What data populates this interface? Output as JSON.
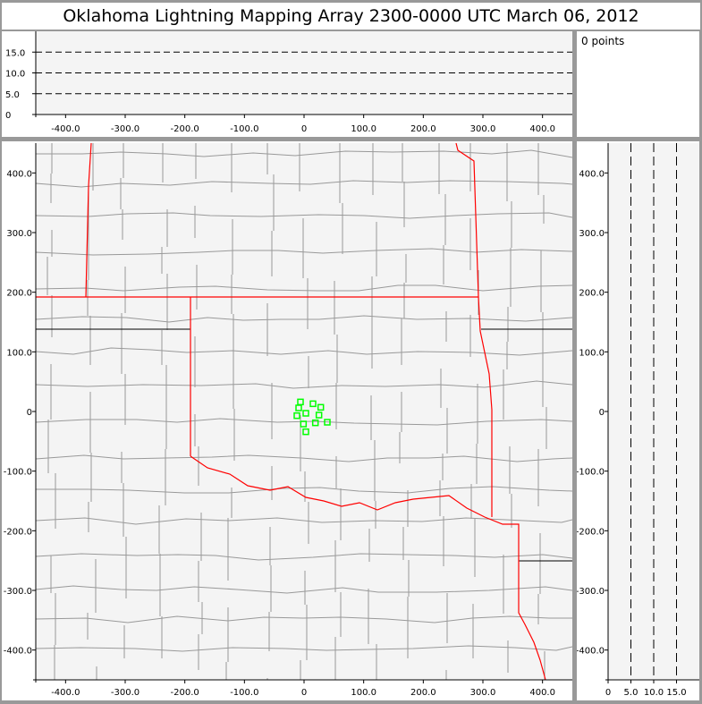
{
  "title": "Oklahoma Lightning Mapping Array   2300-0000 UTC  March 06, 2012",
  "info": {
    "points_label": "0 points"
  },
  "colors": {
    "plot_bg": "#f4f4f4",
    "state_border": "#ff0000",
    "county_border": "#999999",
    "source_marker": "#00ff00"
  },
  "height_panel": {
    "x_ticks": [
      "-400.0",
      "-300.0",
      "-200.0",
      "-100.0",
      "0",
      "100.0",
      "200.0",
      "300.0",
      "400.0"
    ],
    "y_ticks": [
      "0",
      "5.0",
      "10.0",
      "15.0"
    ],
    "xlim": [
      -450,
      450
    ],
    "ylim": [
      0,
      20
    ],
    "dashed_levels_km": [
      5,
      10,
      15
    ]
  },
  "plan_view": {
    "x_ticks": [
      "-400.0",
      "-300.0",
      "-200.0",
      "-100.0",
      "0",
      "100.0",
      "200.0",
      "300.0",
      "400.0"
    ],
    "y_ticks": [
      "400.0",
      "300.0",
      "200.0",
      "100.0",
      "0",
      "-100.0",
      "-200.0",
      "-300.0",
      "-400.0"
    ],
    "xlim": [
      -450,
      450
    ],
    "ylim": [
      -450,
      450
    ],
    "markers_km": [
      [
        -6,
        16
      ],
      [
        -9,
        6
      ],
      [
        15,
        13
      ],
      [
        28,
        7
      ],
      [
        -12,
        -7
      ],
      [
        3,
        -3
      ],
      [
        25,
        -6
      ],
      [
        -1,
        -21
      ],
      [
        19,
        -19
      ],
      [
        39,
        -18
      ],
      [
        3,
        -34
      ]
    ]
  },
  "side_panel": {
    "x_ticks": [
      "0",
      "5.0",
      "10.0",
      "15.0"
    ],
    "y_ticks": [
      "400.0",
      "300.0",
      "200.0",
      "100.0",
      "0",
      "-100.0",
      "-200.0",
      "-300.0",
      "-400.0"
    ],
    "xlim": [
      0,
      20
    ],
    "dashed_levels_km": [
      5,
      10,
      15
    ]
  }
}
